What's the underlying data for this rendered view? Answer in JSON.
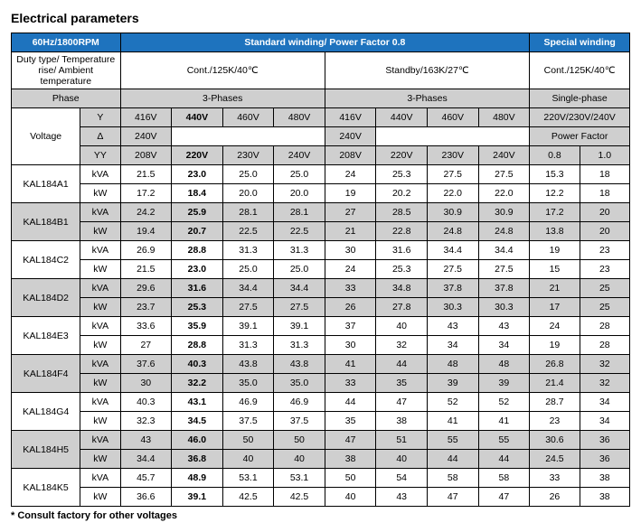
{
  "title": "Electrical parameters",
  "footnote": "* Consult factory for other voltages",
  "header": {
    "freq_rpm": "60Hz/1800RPM",
    "std_winding": "Standard winding/ Power Factor 0.8",
    "sp_winding": "Special winding",
    "duty_label": "Duty type/ Temperature rise/ Ambient temperature",
    "cont_125": "Cont./125K/40℃",
    "standby": "Standby/163K/27℃",
    "phase_label": "Phase",
    "three_phases": "3-Phases",
    "single_phase": "Single-phase",
    "voltage_label": "Voltage",
    "y_label": "Y",
    "delta_label": "Δ",
    "yy_label": "YY",
    "power_factor_label": "Power Factor",
    "cont_y": [
      "416V",
      "440V",
      "460V",
      "480V"
    ],
    "stby_y": [
      "416V",
      "440V",
      "460V",
      "480V"
    ],
    "sp_y": "220V/230V/240V",
    "cont_d": "240V",
    "stby_d": "240V",
    "cont_yy": [
      "208V",
      "220V",
      "230V",
      "240V"
    ],
    "stby_yy": [
      "208V",
      "220V",
      "230V",
      "240V"
    ],
    "pf": [
      "0.8",
      "1.0"
    ]
  },
  "models": [
    {
      "name": "KAL184A1",
      "gray": false,
      "kva": [
        "21.5",
        "23.0",
        "25.0",
        "25.0",
        "24",
        "25.3",
        "27.5",
        "27.5",
        "15.3",
        "18"
      ],
      "kw": [
        "17.2",
        "18.4",
        "20.0",
        "20.0",
        "19",
        "20.2",
        "22.0",
        "22.0",
        "12.2",
        "18"
      ]
    },
    {
      "name": "KAL184B1",
      "gray": true,
      "kva": [
        "24.2",
        "25.9",
        "28.1",
        "28.1",
        "27",
        "28.5",
        "30.9",
        "30.9",
        "17.2",
        "20"
      ],
      "kw": [
        "19.4",
        "20.7",
        "22.5",
        "22.5",
        "21",
        "22.8",
        "24.8",
        "24.8",
        "13.8",
        "20"
      ]
    },
    {
      "name": "KAL184C2",
      "gray": false,
      "kva": [
        "26.9",
        "28.8",
        "31.3",
        "31.3",
        "30",
        "31.6",
        "34.4",
        "34.4",
        "19",
        "23"
      ],
      "kw": [
        "21.5",
        "23.0",
        "25.0",
        "25.0",
        "24",
        "25.3",
        "27.5",
        "27.5",
        "15",
        "23"
      ]
    },
    {
      "name": "KAL184D2",
      "gray": true,
      "kva": [
        "29.6",
        "31.6",
        "34.4",
        "34.4",
        "33",
        "34.8",
        "37.8",
        "37.8",
        "21",
        "25"
      ],
      "kw": [
        "23.7",
        "25.3",
        "27.5",
        "27.5",
        "26",
        "27.8",
        "30.3",
        "30.3",
        "17",
        "25"
      ]
    },
    {
      "name": "KAL184E3",
      "gray": false,
      "kva": [
        "33.6",
        "35.9",
        "39.1",
        "39.1",
        "37",
        "40",
        "43",
        "43",
        "24",
        "28"
      ],
      "kw": [
        "27",
        "28.8",
        "31.3",
        "31.3",
        "30",
        "32",
        "34",
        "34",
        "19",
        "28"
      ]
    },
    {
      "name": "KAL184F4",
      "gray": true,
      "kva": [
        "37.6",
        "40.3",
        "43.8",
        "43.8",
        "41",
        "44",
        "48",
        "48",
        "26.8",
        "32"
      ],
      "kw": [
        "30",
        "32.2",
        "35.0",
        "35.0",
        "33",
        "35",
        "39",
        "39",
        "21.4",
        "32"
      ]
    },
    {
      "name": "KAL184G4",
      "gray": false,
      "kva": [
        "40.3",
        "43.1",
        "46.9",
        "46.9",
        "44",
        "47",
        "52",
        "52",
        "28.7",
        "34"
      ],
      "kw": [
        "32.3",
        "34.5",
        "37.5",
        "37.5",
        "35",
        "38",
        "41",
        "41",
        "23",
        "34"
      ]
    },
    {
      "name": "KAL184H5",
      "gray": true,
      "kva": [
        "43",
        "46.0",
        "50",
        "50",
        "47",
        "51",
        "55",
        "55",
        "30.6",
        "36"
      ],
      "kw": [
        "34.4",
        "36.8",
        "40",
        "40",
        "38",
        "40",
        "44",
        "44",
        "24.5",
        "36"
      ]
    },
    {
      "name": "KAL184K5",
      "gray": false,
      "kva": [
        "45.7",
        "48.9",
        "53.1",
        "53.1",
        "50",
        "54",
        "58",
        "58",
        "33",
        "38"
      ],
      "kw": [
        "36.6",
        "39.1",
        "42.5",
        "42.5",
        "40",
        "43",
        "47",
        "47",
        "26",
        "38"
      ]
    }
  ],
  "kva_label": "kVA",
  "kw_label": "kW",
  "colors": {
    "header_bg": "#1e73be",
    "gray_bg": "#cfcfcf"
  }
}
